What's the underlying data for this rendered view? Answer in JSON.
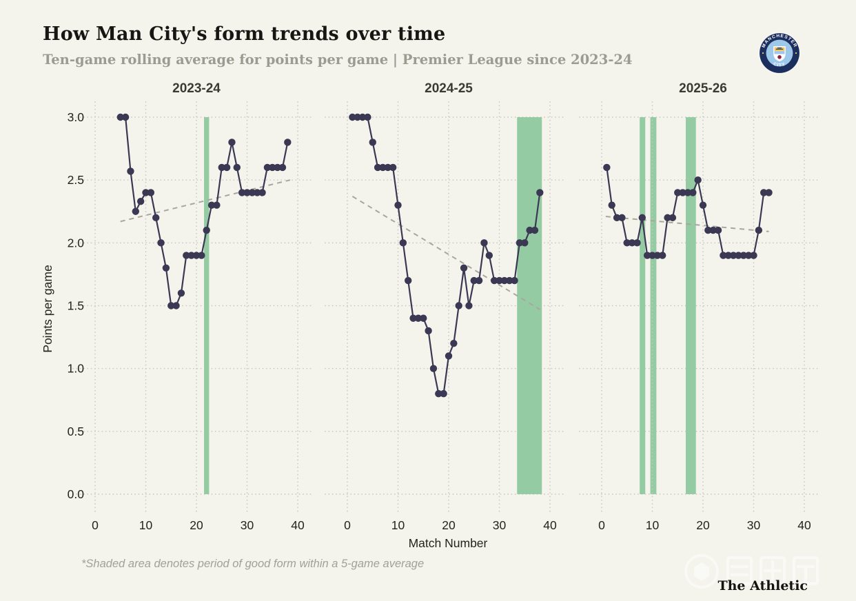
{
  "header": {
    "title": "How Man City's form trends over time",
    "subtitle": "Ten-game rolling average for points per game | Premier League since 2023-24"
  },
  "badge": {
    "top_text": "MANCHESTER",
    "bottom_text": "CITY"
  },
  "footnote": "*Shaded area denotes period of good form within a 5-game average",
  "credit": "The Athletic",
  "watermark_text": "懂球帝",
  "colors": {
    "background": "#f4f3ec",
    "line": "#3a3852",
    "band": "#95cba3",
    "grid": "#c8c8bf",
    "trend": "#a8a79e",
    "title_ink": "#171613",
    "subtitle_gray": "#9c9b90",
    "badge_navy": "#1c2e5e",
    "badge_sky": "#9dc8ea",
    "badge_gold": "#f3c75f",
    "badge_red": "#8e2043"
  },
  "chart_data": {
    "type": "line",
    "title": "How Man City's form trends over time",
    "xlabel": "Match Number",
    "ylabel": "Points per game",
    "ylim": [
      0.0,
      3.0
    ],
    "xlim": [
      0,
      40
    ],
    "x_ticks": [
      0,
      10,
      20,
      30,
      40
    ],
    "y_tick_labels": [
      "0.0",
      "0.5",
      "1.0",
      "1.5",
      "2.0",
      "2.5",
      "3.0"
    ],
    "grid": "dotted",
    "legend": "none",
    "panels": [
      {
        "title": "2023-24",
        "x": [
          5,
          6,
          7,
          8,
          9,
          10,
          11,
          12,
          13,
          14,
          15,
          16,
          17,
          18,
          19,
          20,
          21,
          22,
          23,
          24,
          25,
          26,
          27,
          28,
          29,
          30,
          31,
          32,
          33,
          34,
          35,
          36,
          37,
          38
        ],
        "values": [
          3.0,
          3.0,
          2.57,
          2.25,
          2.33,
          2.4,
          2.4,
          2.2,
          2.0,
          1.8,
          1.5,
          1.5,
          1.6,
          1.9,
          1.9,
          1.9,
          1.9,
          2.1,
          2.3,
          2.3,
          2.6,
          2.6,
          2.8,
          2.6,
          2.4,
          2.4,
          2.4,
          2.4,
          2.4,
          2.6,
          2.6,
          2.6,
          2.6,
          2.8
        ],
        "good_form_bands": [
          [
            21.5,
            22.5
          ]
        ],
        "trend": [
          5,
          2.17,
          38.5,
          2.5
        ]
      },
      {
        "title": "2024-25",
        "x": [
          1,
          2,
          3,
          4,
          5,
          6,
          7,
          8,
          9,
          10,
          11,
          12,
          13,
          14,
          15,
          16,
          17,
          18,
          19,
          20,
          21,
          22,
          23,
          24,
          25,
          26,
          27,
          28,
          29,
          30,
          31,
          32,
          33,
          34,
          35,
          36,
          37,
          38
        ],
        "values": [
          3.0,
          3.0,
          3.0,
          3.0,
          2.8,
          2.6,
          2.6,
          2.6,
          2.6,
          2.3,
          2.0,
          1.7,
          1.4,
          1.4,
          1.4,
          1.3,
          1.0,
          0.8,
          0.8,
          1.1,
          1.2,
          1.5,
          1.8,
          1.5,
          1.7,
          1.7,
          2.0,
          1.9,
          1.7,
          1.7,
          1.7,
          1.7,
          1.7,
          2.0,
          2.0,
          2.1,
          2.1,
          2.4
        ],
        "good_form_bands": [
          [
            33.5,
            38.4
          ]
        ],
        "trend": [
          1,
          2.37,
          38,
          1.47
        ]
      },
      {
        "title": "2025-26",
        "x": [
          1,
          2,
          3,
          4,
          5,
          6,
          7,
          8,
          9,
          10,
          11,
          12,
          13,
          14,
          15,
          16,
          17,
          18,
          19,
          20,
          21,
          22,
          23,
          24,
          25,
          26,
          27,
          28,
          29,
          30,
          31,
          32,
          33
        ],
        "values": [
          2.6,
          2.3,
          2.2,
          2.2,
          2.0,
          2.0,
          2.0,
          2.2,
          1.9,
          1.9,
          1.9,
          1.9,
          2.2,
          2.2,
          2.4,
          2.4,
          2.4,
          2.4,
          2.5,
          2.3,
          2.1,
          2.1,
          2.1,
          1.9,
          1.9,
          1.9,
          1.9,
          1.9,
          1.9,
          1.9,
          2.1,
          2.4,
          2.4
        ],
        "good_form_bands": [
          [
            7.5,
            8.6
          ],
          [
            9.6,
            10.8
          ],
          [
            16.6,
            18.6
          ]
        ],
        "trend": [
          0.8,
          2.21,
          33,
          2.09
        ]
      }
    ]
  }
}
